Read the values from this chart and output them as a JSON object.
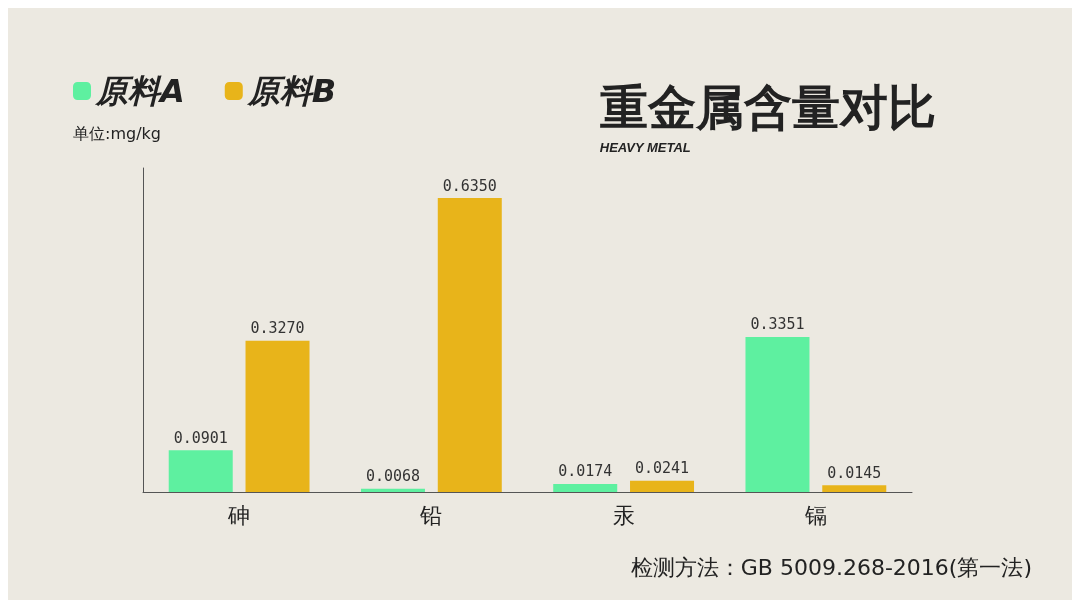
{
  "chart_data": {
    "type": "bar",
    "title": "重金属含量对比",
    "subtitle": "HEAVY METAL",
    "ylabel": "单位:mg/kg",
    "categories": [
      "砷",
      "铅",
      "汞",
      "镉"
    ],
    "series": [
      {
        "name": "原料A",
        "color": "#5ef0a0",
        "values": [
          0.0901,
          0.0068,
          0.0174,
          0.3351
        ],
        "value_labels": [
          "0.0901",
          "0.0068",
          "0.0174",
          "0.3351"
        ]
      },
      {
        "name": "原料B",
        "color": "#e8b41a",
        "values": [
          0.327,
          0.635,
          0.0241,
          0.0145
        ],
        "value_labels": [
          "0.3270",
          "0.6350",
          "0.0241",
          "0.0145"
        ]
      }
    ],
    "legend": "top left",
    "grid": false,
    "tick_labels": "x",
    "annotations": [
      "检测方法：GB 5009.268-2016(第一法)"
    ]
  }
}
